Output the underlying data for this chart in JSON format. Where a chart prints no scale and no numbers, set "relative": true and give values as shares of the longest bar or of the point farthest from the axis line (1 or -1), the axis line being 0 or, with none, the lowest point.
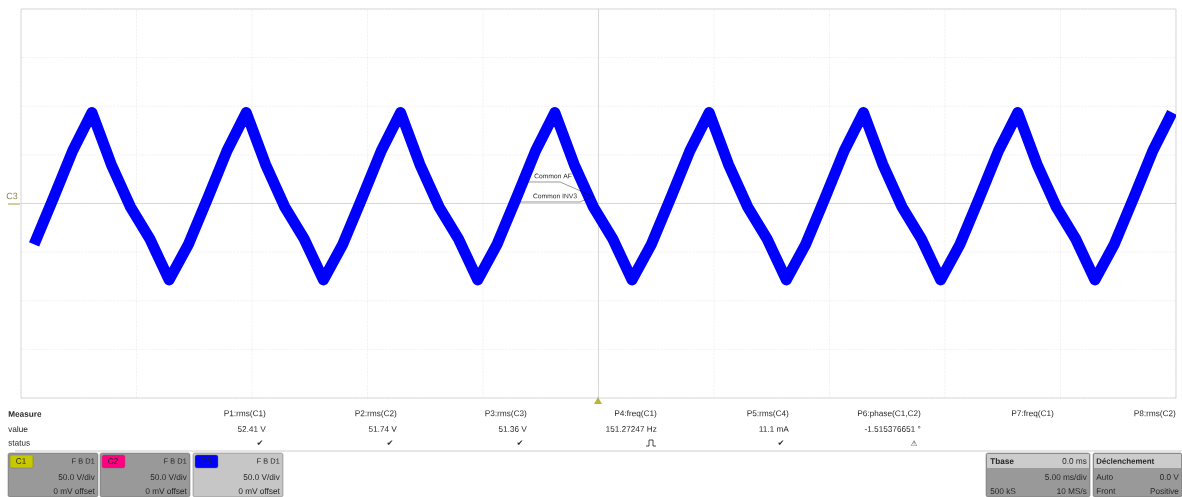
{
  "chart_data": {
    "type": "line",
    "relative": true,
    "grid": true,
    "categories": [
      null,
      null,
      null,
      null,
      null,
      null,
      null,
      null,
      null,
      null,
      null,
      null,
      null,
      null,
      null,
      null,
      null,
      null,
      null,
      null,
      null,
      null,
      null,
      null,
      null,
      null,
      null,
      null,
      null,
      null,
      null,
      null,
      null,
      null,
      null,
      null,
      null,
      null,
      null,
      null,
      null,
      null,
      null,
      null,
      null,
      null,
      null,
      null,
      null,
      null,
      null,
      null,
      null,
      null,
      null,
      null,
      null,
      null,
      null,
      null
    ],
    "series": [
      {
        "name": "C3",
        "color": "#0000ff",
        "values": [
          -0.45,
          0.06,
          0.58,
          1.0,
          0.43,
          -0.04,
          -0.39,
          -0.84,
          -0.45,
          0.06,
          0.58,
          1.0,
          0.43,
          -0.04,
          -0.39,
          -0.84,
          -0.45,
          0.06,
          0.58,
          1.0,
          0.43,
          -0.04,
          -0.39,
          -0.84,
          -0.45,
          0.06,
          0.58,
          1.0,
          0.43,
          -0.04,
          -0.39,
          -0.84,
          -0.45,
          0.06,
          0.58,
          1.0,
          0.43,
          -0.04,
          -0.39,
          -0.84,
          -0.45,
          0.06,
          0.58,
          1.0,
          0.43,
          -0.04,
          -0.39,
          -0.84,
          -0.45,
          0.06,
          0.58,
          1.0,
          0.43,
          -0.04,
          -0.39,
          -0.84,
          -0.45,
          0.06,
          0.58,
          1.0
        ]
      }
    ],
    "annotations": [
      "Common AF",
      "Common INV3",
      "Measure",
      "value",
      "status",
      "P1:rms(C1)",
      "52.41 V",
      "P2:rms(C2)",
      "51.74 V",
      "P3:rms(C3)",
      "51.36 V",
      "P4:freq(C1)",
      "151.27247 Hz",
      "P5:rms(C4)",
      "11.1 mA",
      "P6:phase(C1,C2)",
      "-1.515376651 °",
      "P7:freq(C1)",
      "P8:rms(C2)",
      "✔",
      "✔",
      "✔",
      "✔",
      "⚠",
      "C1",
      "F B D1",
      "50.0 V/div",
      "0 mV offset",
      "C2",
      "F B D1",
      "50.0 V/div",
      "0 mV offset",
      "C3",
      "F B D1",
      "50.0 V/div",
      "0 mV offset",
      "Tbase",
      "0.0 ms",
      "5.00 ms/div",
      "500 kS",
      "10 MS/s",
      "Déclenchement",
      "Auto",
      "0.0 V",
      "Front",
      "Positive"
    ]
  }
}
